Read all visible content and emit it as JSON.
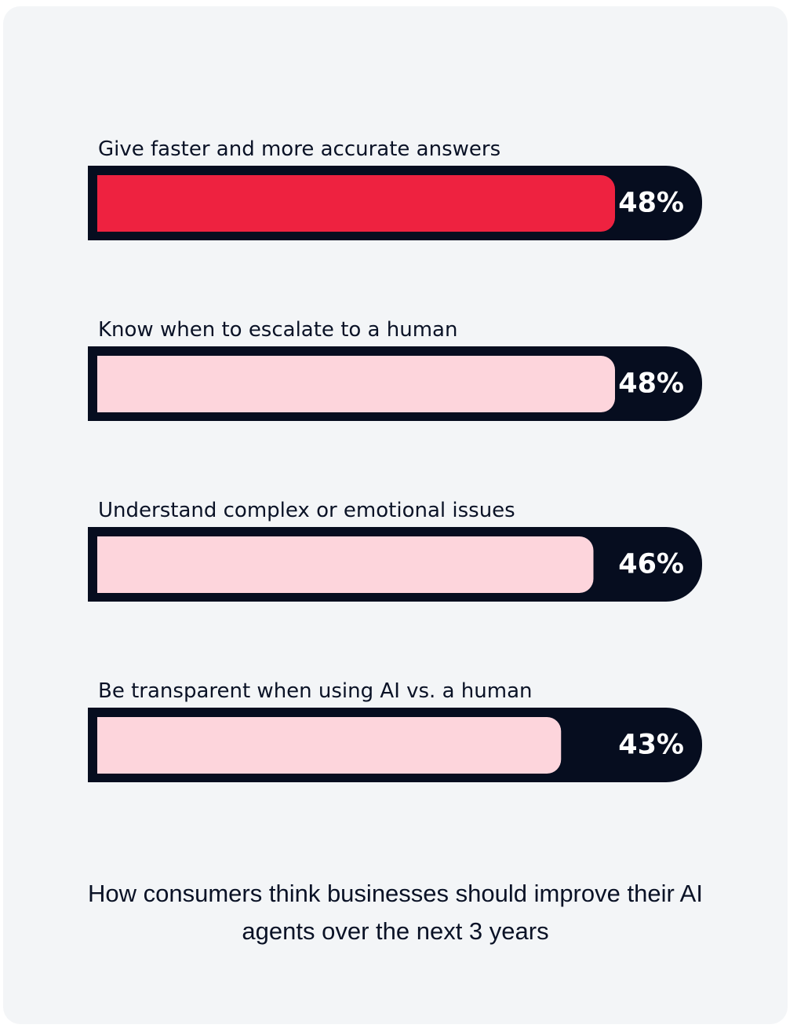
{
  "chart_data": {
    "type": "bar",
    "orientation": "horizontal",
    "title": "How consumers think businesses should improve their AI agents over the next 3 years",
    "categories": [
      "Give faster and more accurate answers",
      "Know when to escalate to a human",
      "Understand complex or emotional issues",
      "Be transparent when using AI vs. a human"
    ],
    "values": [
      48,
      48,
      46,
      43
    ],
    "value_labels": [
      "48%",
      "48%",
      "46%",
      "43%"
    ],
    "colors": [
      "#ee2240",
      "#fdd5dc",
      "#fdd5dc",
      "#fdd5dc"
    ],
    "track_color": "#060d1f"
  }
}
